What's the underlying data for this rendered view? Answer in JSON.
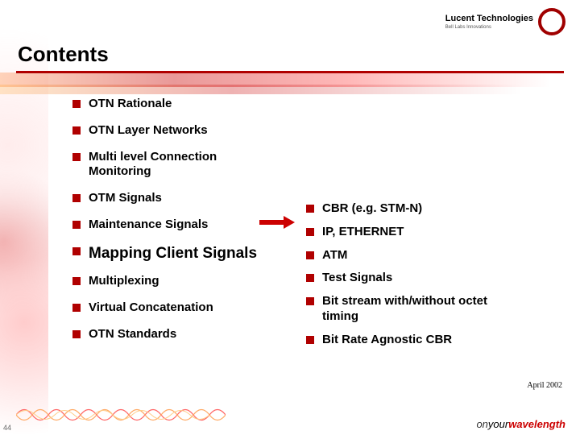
{
  "header": {
    "title": "Contents",
    "brand_main": "Lucent Technologies",
    "brand_sub": "Bell Labs Innovations"
  },
  "colors": {
    "accent": "#b00000",
    "text": "#000000",
    "bg": "#ffffff"
  },
  "left_items": [
    {
      "label": "OTN Rationale",
      "highlighted": false
    },
    {
      "label": "OTN Layer Networks",
      "highlighted": false
    },
    {
      "label": "Multi level Connection Monitoring",
      "highlighted": false
    },
    {
      "label": "OTM Signals",
      "highlighted": false
    },
    {
      "label": "Maintenance Signals",
      "highlighted": false
    },
    {
      "label": "Mapping Client Signals",
      "highlighted": true
    },
    {
      "label": "Multiplexing",
      "highlighted": false
    },
    {
      "label": "Virtual Concatenation",
      "highlighted": false
    },
    {
      "label": "OTN Standards",
      "highlighted": false
    }
  ],
  "right_items": [
    {
      "label": "CBR (e.g. STM-N)"
    },
    {
      "label": "IP, ETHERNET"
    },
    {
      "label": "ATM"
    },
    {
      "label": "Test Signals"
    },
    {
      "label": "Bit stream with/without octet timing"
    },
    {
      "label": "Bit Rate Agnostic CBR"
    }
  ],
  "footer": {
    "date": "April 2002",
    "page": "44",
    "tagline_on": "on",
    "tagline_your": "your",
    "tagline_wave": "wavelength"
  }
}
